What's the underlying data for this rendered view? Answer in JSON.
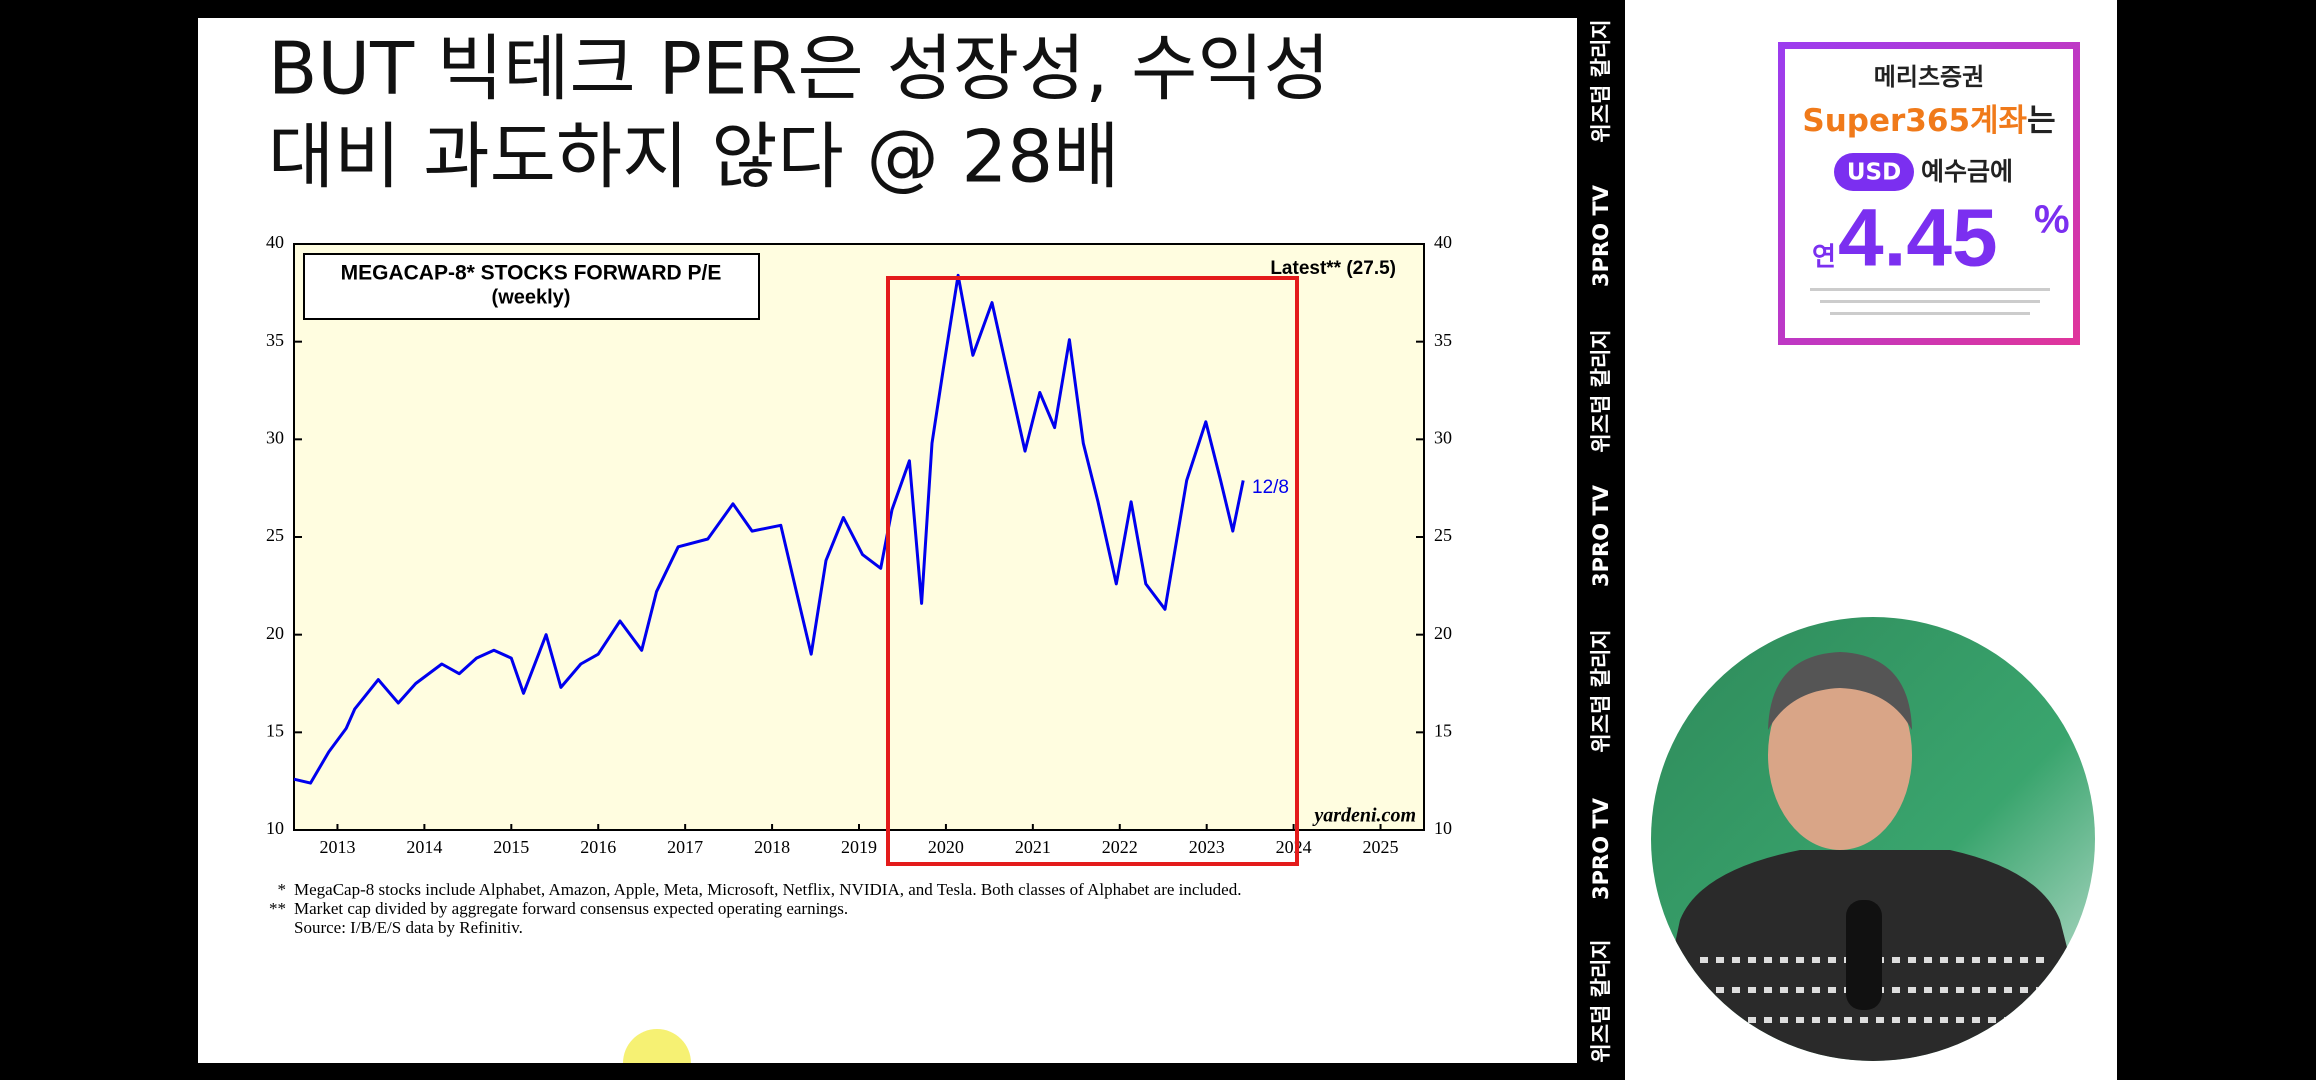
{
  "slide": {
    "title_lines": [
      "BUT 빅테크 PER은 성장성, 수익성",
      "대비 과도하지 않다 @ 28배"
    ],
    "footnotes": [
      {
        "mark": "*",
        "text": "MegaCap-8 stocks include Alphabet, Amazon, Apple, Meta, Microsoft, Netflix, NVIDIA, and Tesla. Both classes of Alphabet are included."
      },
      {
        "mark": "**",
        "text": "Market cap divided by aggregate forward consensus expected operating earnings."
      },
      {
        "mark": "",
        "text": "Source: I/B/E/S data by Refinitiv."
      }
    ]
  },
  "chart_data": {
    "type": "line",
    "title": "MEGACAP-8* STOCKS FORWARD P/E",
    "subtitle": "(weekly)",
    "annotations": [
      "Latest** (27.5)",
      "12/8",
      "yardeni.com"
    ],
    "x": [
      2013.0,
      2013.19,
      2013.4,
      2013.6,
      2013.7,
      2013.97,
      2014.2,
      2014.4,
      2014.7,
      2014.9,
      2015.1,
      2015.3,
      2015.5,
      2015.64,
      2015.9,
      2016.07,
      2016.3,
      2016.5,
      2016.75,
      2017.0,
      2017.17,
      2017.42,
      2017.76,
      2018.05,
      2018.27,
      2018.6,
      2018.78,
      2018.95,
      2019.12,
      2019.32,
      2019.54,
      2019.75,
      2019.88,
      2020.08,
      2020.22,
      2020.34,
      2020.47,
      2020.64,
      2020.81,
      2021.03,
      2021.24,
      2021.41,
      2021.58,
      2021.75,
      2021.92,
      2022.08,
      2022.25,
      2022.46,
      2022.63,
      2022.8,
      2023.02,
      2023.27,
      2023.49,
      2023.66,
      2023.8,
      2023.92
    ],
    "values": [
      12.6,
      12.4,
      14.0,
      15.2,
      16.2,
      17.7,
      16.5,
      17.5,
      18.5,
      18.0,
      18.8,
      19.2,
      18.8,
      17.0,
      20.0,
      17.3,
      18.5,
      19.0,
      20.7,
      19.2,
      22.2,
      24.5,
      24.9,
      26.7,
      25.3,
      25.6,
      22.2,
      19.0,
      23.8,
      26.0,
      24.1,
      23.4,
      26.4,
      28.9,
      21.6,
      29.8,
      33.6,
      38.4,
      34.3,
      37.0,
      32.8,
      29.4,
      32.4,
      30.6,
      35.1,
      29.8,
      26.8,
      22.6,
      26.8,
      22.6,
      21.3,
      27.9,
      30.9,
      27.9,
      25.3,
      27.9
    ],
    "color": "#0000ee",
    "xlim": [
      2013,
      2026
    ],
    "xticks": [
      {
        "value": 2013.5,
        "label": "2013"
      },
      {
        "value": 2014.5,
        "label": "2014"
      },
      {
        "value": 2015.5,
        "label": "2015"
      },
      {
        "value": 2016.5,
        "label": "2016"
      },
      {
        "value": 2017.5,
        "label": "2017"
      },
      {
        "value": 2018.5,
        "label": "2018"
      },
      {
        "value": 2019.5,
        "label": "2019"
      },
      {
        "value": 2020.5,
        "label": "2020"
      },
      {
        "value": 2021.5,
        "label": "2021"
      },
      {
        "value": 2022.5,
        "label": "2022"
      },
      {
        "value": 2023.5,
        "label": "2023"
      },
      {
        "value": 2024.5,
        "label": "2024"
      },
      {
        "value": 2025.5,
        "label": "2025"
      }
    ],
    "ylim": [
      10,
      40
    ],
    "yticks": [
      10,
      15,
      20,
      25,
      30,
      35,
      40
    ]
  },
  "side_banner": [
    "위즈덤 칼리지",
    "3PRO TV",
    "위즈덤 칼리지",
    "3PRO TV",
    "위즈덤 칼리지",
    "3PRO TV",
    "위즈덤 칼리지"
  ],
  "ad": {
    "brand": "메리츠증권",
    "headline": [
      "Super365계좌",
      "는"
    ],
    "currency": "USD",
    "deposit": "예수금에",
    "rate_prefix": "연",
    "rate": "4.45",
    "rate_unit": "%"
  }
}
